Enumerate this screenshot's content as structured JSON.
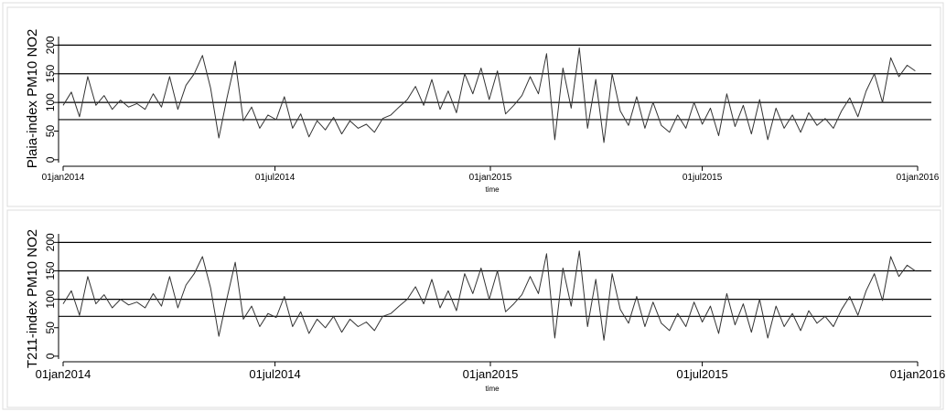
{
  "chart_data": [
    {
      "type": "line",
      "ylabel": "Plaia-index PM10 NO2",
      "xlabel": "time",
      "xlim": [
        "2014-01-01",
        "2016-01-01"
      ],
      "ylim": [
        -5,
        215
      ],
      "xticks": [
        {
          "date": "2014-01-01",
          "label": "01jan2014"
        },
        {
          "date": "2014-07-01",
          "label": "01jul2014"
        },
        {
          "date": "2015-01-01",
          "label": "01jan2015"
        },
        {
          "date": "2015-07-01",
          "label": "01jul2015"
        },
        {
          "date": "2016-01-01",
          "label": "01jan2016"
        }
      ],
      "yticks": [
        0,
        50,
        100,
        150,
        200
      ],
      "reference_lines": [
        70,
        100,
        150,
        200
      ],
      "grid": false,
      "series": [
        {
          "x": [
            "2014-01-01",
            "2014-01-08",
            "2014-01-15",
            "2014-01-22",
            "2014-01-29",
            "2014-02-05",
            "2014-02-12",
            "2014-02-19",
            "2014-02-26",
            "2014-03-05",
            "2014-03-12",
            "2014-03-19",
            "2014-03-26",
            "2014-04-02",
            "2014-04-09",
            "2014-04-16",
            "2014-04-23",
            "2014-04-30",
            "2014-05-07",
            "2014-05-14",
            "2014-05-21",
            "2014-05-28",
            "2014-06-04",
            "2014-06-11",
            "2014-06-18",
            "2014-06-25",
            "2014-07-02",
            "2014-07-09",
            "2014-07-16",
            "2014-07-23",
            "2014-07-30",
            "2014-08-06",
            "2014-08-13",
            "2014-08-20",
            "2014-08-27",
            "2014-09-03",
            "2014-09-10",
            "2014-09-17",
            "2014-09-24",
            "2014-10-01",
            "2014-10-08",
            "2014-10-15",
            "2014-10-22",
            "2014-10-29",
            "2014-11-05",
            "2014-11-12",
            "2014-11-19",
            "2014-11-26",
            "2014-12-03",
            "2014-12-10",
            "2014-12-17",
            "2014-12-24",
            "2014-12-31",
            "2015-01-07",
            "2015-01-14",
            "2015-01-21",
            "2015-01-28",
            "2015-02-04",
            "2015-02-11",
            "2015-02-18",
            "2015-02-25",
            "2015-03-04",
            "2015-03-11",
            "2015-03-18",
            "2015-03-25",
            "2015-04-01",
            "2015-04-08",
            "2015-04-15",
            "2015-04-22",
            "2015-04-29",
            "2015-05-06",
            "2015-05-13",
            "2015-05-20",
            "2015-05-27",
            "2015-06-03",
            "2015-06-10",
            "2015-06-17",
            "2015-06-24",
            "2015-07-01",
            "2015-07-08",
            "2015-07-15",
            "2015-07-22",
            "2015-07-29",
            "2015-08-05",
            "2015-08-12",
            "2015-08-19",
            "2015-08-26",
            "2015-09-02",
            "2015-09-09",
            "2015-09-16",
            "2015-09-23",
            "2015-09-30",
            "2015-10-07",
            "2015-10-14",
            "2015-10-21",
            "2015-10-28",
            "2015-11-04",
            "2015-11-11",
            "2015-11-18",
            "2015-11-25",
            "2015-12-02",
            "2015-12-09",
            "2015-12-16",
            "2015-12-23",
            "2015-12-30"
          ],
          "y": [
            95,
            118,
            75,
            145,
            95,
            112,
            88,
            104,
            92,
            98,
            88,
            115,
            92,
            145,
            88,
            130,
            150,
            182,
            125,
            38,
            108,
            172,
            68,
            92,
            55,
            78,
            70,
            110,
            55,
            80,
            40,
            68,
            52,
            74,
            45,
            68,
            55,
            62,
            48,
            72,
            78,
            92,
            105,
            128,
            95,
            140,
            88,
            120,
            82,
            150,
            115,
            160,
            105,
            155,
            80,
            95,
            112,
            145,
            115,
            185,
            35,
            160,
            90,
            195,
            55,
            140,
            30,
            150,
            85,
            60,
            110,
            55,
            100,
            60,
            48,
            78,
            55,
            100,
            62,
            90,
            42,
            115,
            58,
            95,
            45,
            105,
            35,
            90,
            55,
            78,
            48,
            82,
            60,
            72,
            55,
            85,
            108,
            75,
            120,
            150,
            100,
            178,
            145,
            165,
            155
          ]
        }
      ]
    },
    {
      "type": "line",
      "ylabel": "T211-index PM10 NO2",
      "xlabel": "time",
      "xlim": [
        "2014-01-01",
        "2016-01-01"
      ],
      "ylim": [
        -5,
        215
      ],
      "xticks": [
        {
          "date": "2014-01-01",
          "label": "01jan2014"
        },
        {
          "date": "2014-07-01",
          "label": "01jul2014"
        },
        {
          "date": "2015-01-01",
          "label": "01jan2015"
        },
        {
          "date": "2015-07-01",
          "label": "01jul2015"
        },
        {
          "date": "2016-01-01",
          "label": "01jan2016"
        }
      ],
      "yticks": [
        0,
        50,
        100,
        150,
        200
      ],
      "reference_lines": [
        70,
        100,
        150,
        200
      ],
      "grid": false,
      "series": [
        {
          "x": [
            "2014-01-01",
            "2014-01-08",
            "2014-01-15",
            "2014-01-22",
            "2014-01-29",
            "2014-02-05",
            "2014-02-12",
            "2014-02-19",
            "2014-02-26",
            "2014-03-05",
            "2014-03-12",
            "2014-03-19",
            "2014-03-26",
            "2014-04-02",
            "2014-04-09",
            "2014-04-16",
            "2014-04-23",
            "2014-04-30",
            "2014-05-07",
            "2014-05-14",
            "2014-05-21",
            "2014-05-28",
            "2014-06-04",
            "2014-06-11",
            "2014-06-18",
            "2014-06-25",
            "2014-07-02",
            "2014-07-09",
            "2014-07-16",
            "2014-07-23",
            "2014-07-30",
            "2014-08-06",
            "2014-08-13",
            "2014-08-20",
            "2014-08-27",
            "2014-09-03",
            "2014-09-10",
            "2014-09-17",
            "2014-09-24",
            "2014-10-01",
            "2014-10-08",
            "2014-10-15",
            "2014-10-22",
            "2014-10-29",
            "2014-11-05",
            "2014-11-12",
            "2014-11-19",
            "2014-11-26",
            "2014-12-03",
            "2014-12-10",
            "2014-12-17",
            "2014-12-24",
            "2014-12-31",
            "2015-01-07",
            "2015-01-14",
            "2015-01-21",
            "2015-01-28",
            "2015-02-04",
            "2015-02-11",
            "2015-02-18",
            "2015-02-25",
            "2015-03-04",
            "2015-03-11",
            "2015-03-18",
            "2015-03-25",
            "2015-04-01",
            "2015-04-08",
            "2015-04-15",
            "2015-04-22",
            "2015-04-29",
            "2015-05-06",
            "2015-05-13",
            "2015-05-20",
            "2015-05-27",
            "2015-06-03",
            "2015-06-10",
            "2015-06-17",
            "2015-06-24",
            "2015-07-01",
            "2015-07-08",
            "2015-07-15",
            "2015-07-22",
            "2015-07-29",
            "2015-08-05",
            "2015-08-12",
            "2015-08-19",
            "2015-08-26",
            "2015-09-02",
            "2015-09-09",
            "2015-09-16",
            "2015-09-23",
            "2015-09-30",
            "2015-10-07",
            "2015-10-14",
            "2015-10-21",
            "2015-10-28",
            "2015-11-04",
            "2015-11-11",
            "2015-11-18",
            "2015-11-25",
            "2015-12-02",
            "2015-12-09",
            "2015-12-16",
            "2015-12-23",
            "2015-12-30"
          ],
          "y": [
            92,
            115,
            72,
            140,
            92,
            108,
            85,
            100,
            90,
            95,
            85,
            110,
            88,
            140,
            85,
            125,
            145,
            175,
            120,
            35,
            102,
            165,
            65,
            88,
            52,
            75,
            68,
            105,
            52,
            78,
            40,
            65,
            50,
            70,
            42,
            65,
            52,
            60,
            45,
            70,
            75,
            88,
            100,
            122,
            92,
            135,
            85,
            115,
            80,
            145,
            110,
            155,
            100,
            150,
            78,
            92,
            108,
            140,
            110,
            180,
            32,
            155,
            88,
            185,
            52,
            135,
            28,
            145,
            82,
            58,
            105,
            52,
            95,
            58,
            45,
            75,
            52,
            95,
            60,
            88,
            40,
            110,
            55,
            92,
            42,
            100,
            32,
            88,
            52,
            75,
            45,
            80,
            58,
            70,
            52,
            82,
            105,
            72,
            115,
            145,
            98,
            175,
            140,
            160,
            150
          ]
        }
      ]
    }
  ]
}
